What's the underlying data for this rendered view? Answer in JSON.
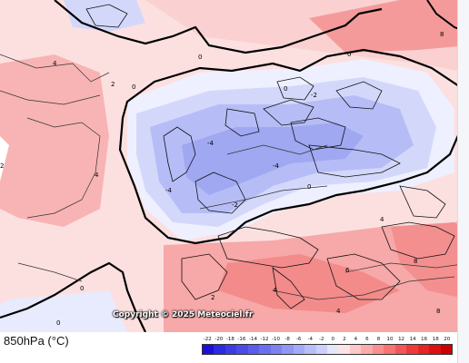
{
  "map": {
    "copyright": "Copyright © 2025 Meteociel.fr",
    "level_label": "850hPa (°C)",
    "contour_labels": [
      "-4",
      "-2",
      "0",
      "2",
      "4",
      "6",
      "8",
      "10"
    ]
  },
  "legend": {
    "ticks": [
      "-22",
      "-20",
      "-18",
      "-16",
      "-14",
      "-12",
      "-10",
      "-8",
      "-6",
      "-4",
      "-2",
      "0",
      "2",
      "4",
      "6",
      "8",
      "10",
      "12",
      "14",
      "16",
      "18",
      "20"
    ],
    "colors": [
      "#1a10d8",
      "#2a2ae0",
      "#3c3ce4",
      "#4b4bea",
      "#5a5cec",
      "#6b6ef0",
      "#7d82f2",
      "#9096f4",
      "#a4aaf6",
      "#b8bef8",
      "#ccd0fa",
      "#e4e6fc",
      "#fde4e4",
      "#fcc8c8",
      "#faacac",
      "#f89090",
      "#f67474",
      "#f25656",
      "#ee3a3a",
      "#e62424",
      "#dd1010",
      "#cc0000"
    ]
  }
}
